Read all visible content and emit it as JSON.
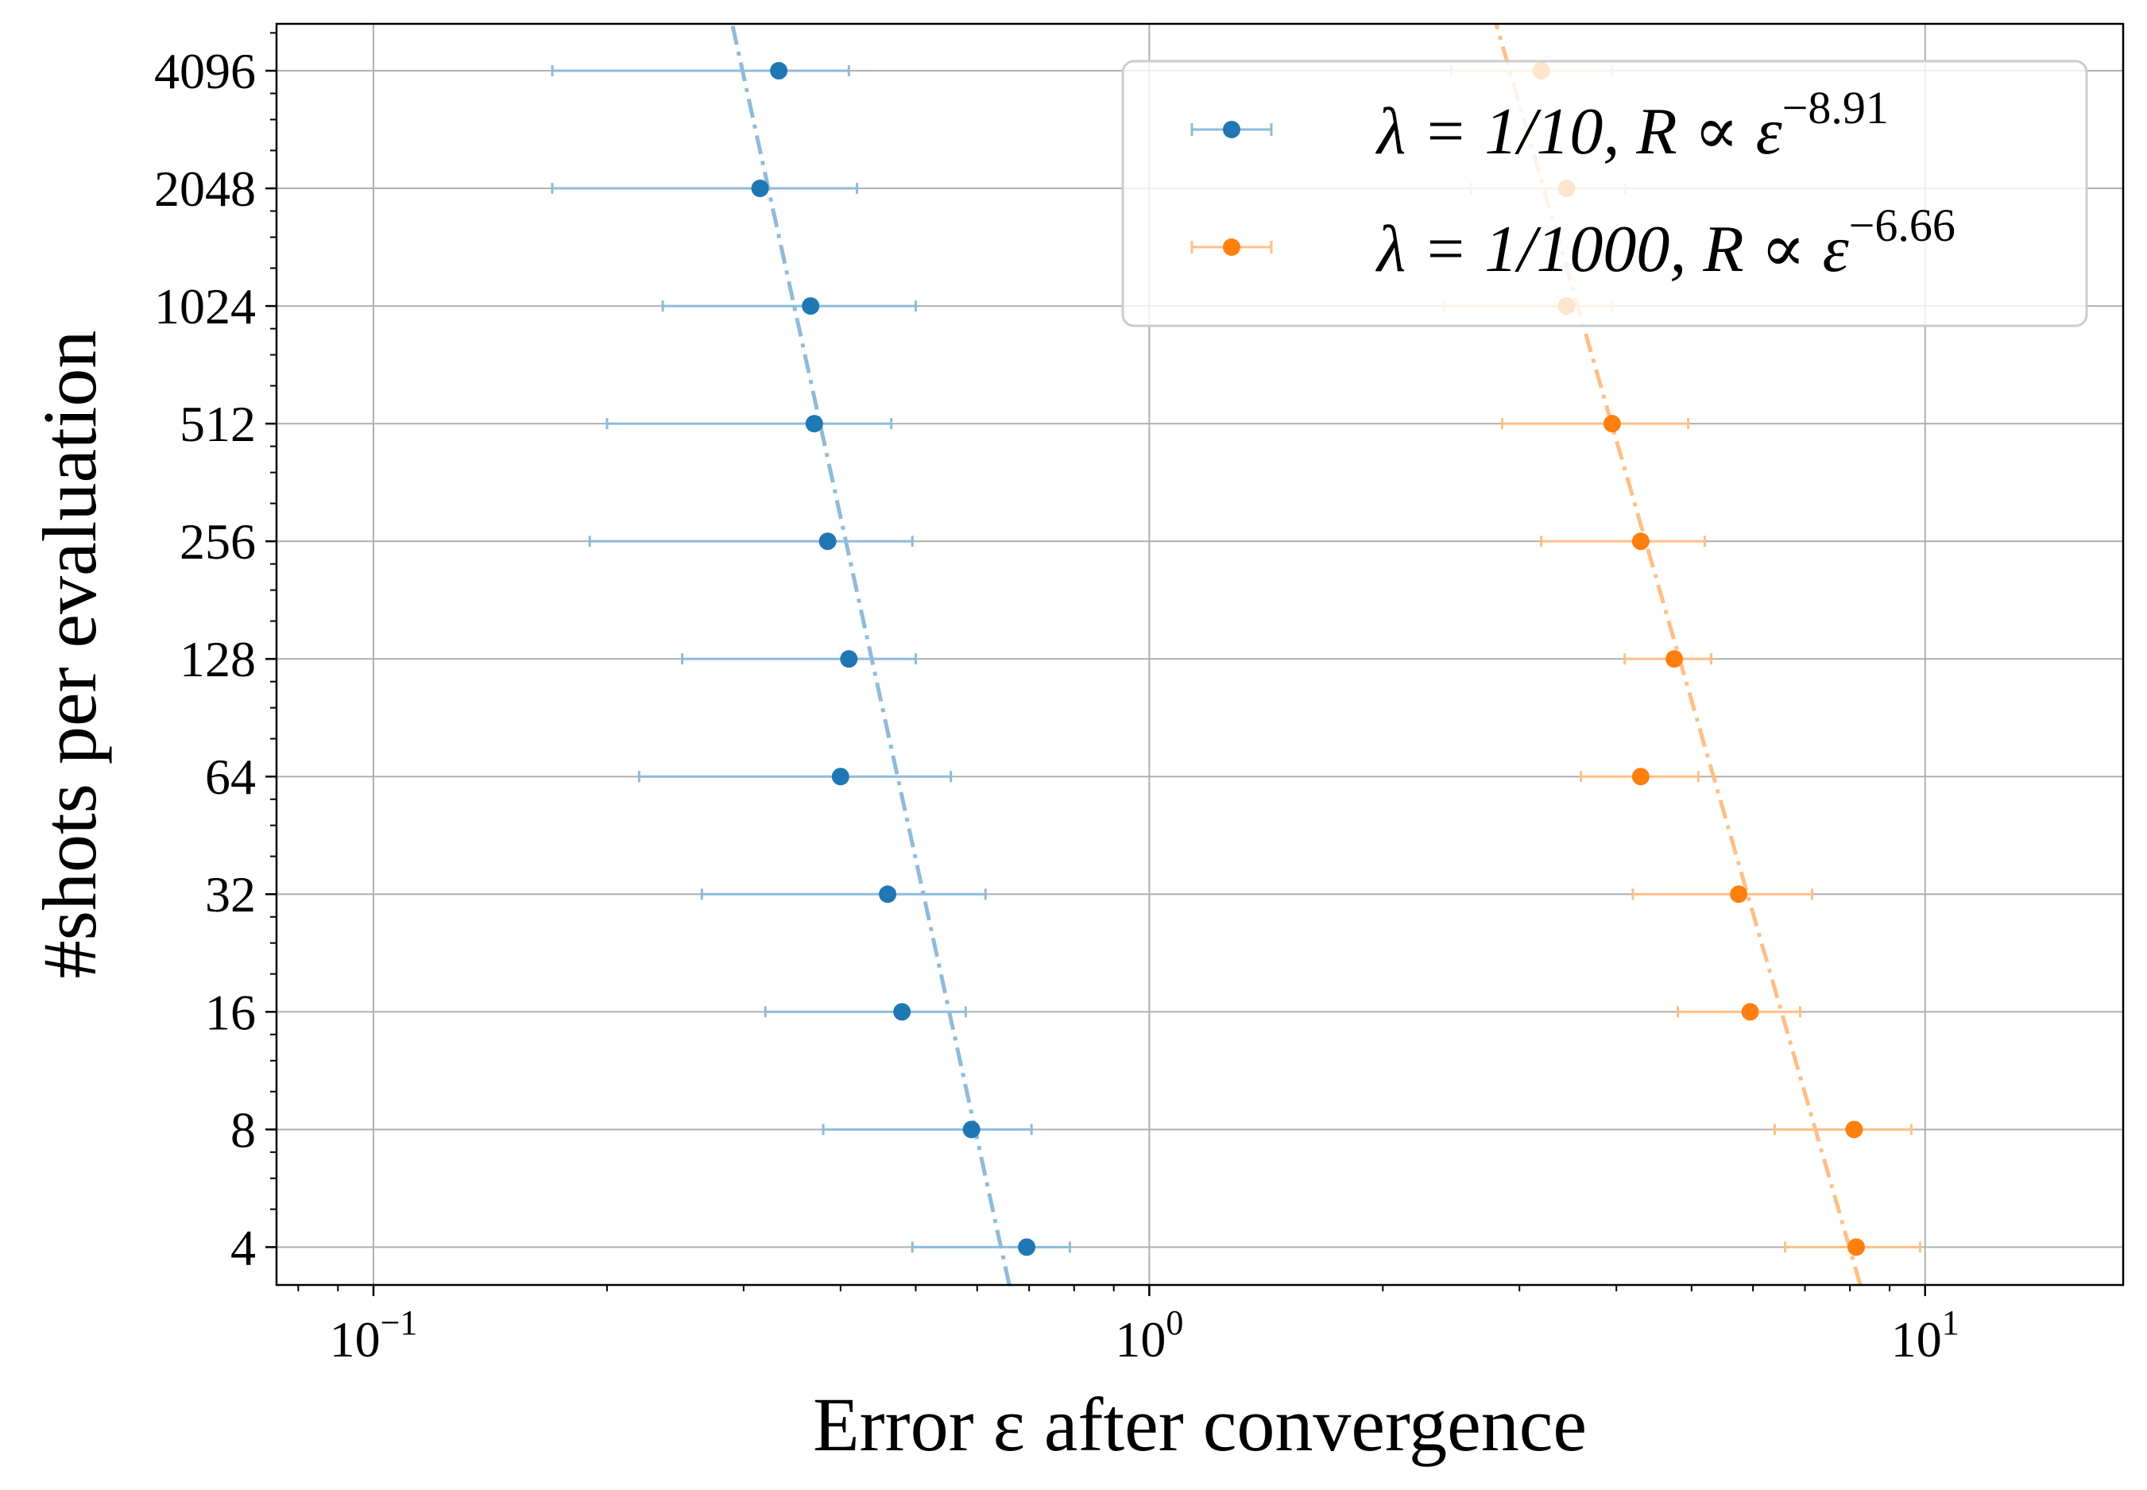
{
  "chart_data": {
    "type": "scatter",
    "xlabel": "Error ε after convergence",
    "ylabel": "#shots per evaluation",
    "x_scale": "log",
    "y_scale": "log2",
    "xlim": [
      0.075,
      18
    ],
    "ylim": [
      3.2,
      5400
    ],
    "x_ticks": [
      {
        "value": 0.1,
        "base": "10",
        "exp": "−1"
      },
      {
        "value": 1,
        "base": "10",
        "exp": "0"
      },
      {
        "value": 10,
        "base": "10",
        "exp": "1"
      }
    ],
    "y_ticks": [
      {
        "value": 4,
        "label": "4"
      },
      {
        "value": 8,
        "label": "8"
      },
      {
        "value": 16,
        "label": "16"
      },
      {
        "value": 32,
        "label": "32"
      },
      {
        "value": 64,
        "label": "64"
      },
      {
        "value": 128,
        "label": "128"
      },
      {
        "value": 256,
        "label": "256"
      },
      {
        "value": 512,
        "label": "512"
      },
      {
        "value": 1024,
        "label": "1024"
      },
      {
        "value": 2048,
        "label": "2048"
      },
      {
        "value": 4096,
        "label": "4096"
      }
    ],
    "grid": true,
    "legend_position": "top-right",
    "series": [
      {
        "name": "λ = 1/10, R ∝ ε",
        "name_lambda": "λ = 1/10, ",
        "name_rel": "R ∝ ε",
        "exponent": "−8.91",
        "color": "#1f77b4",
        "fit_color": "#8fbbd9",
        "points": [
          {
            "y": 4,
            "x": 0.695,
            "xerr": [
              0.495,
              0.79
            ]
          },
          {
            "y": 8,
            "x": 0.59,
            "xerr": [
              0.38,
              0.705
            ]
          },
          {
            "y": 16,
            "x": 0.48,
            "xerr": [
              0.32,
              0.58
            ]
          },
          {
            "y": 32,
            "x": 0.46,
            "xerr": [
              0.265,
              0.615
            ]
          },
          {
            "y": 64,
            "x": 0.4,
            "xerr": [
              0.22,
              0.555
            ]
          },
          {
            "y": 128,
            "x": 0.41,
            "xerr": [
              0.25,
              0.5
            ]
          },
          {
            "y": 256,
            "x": 0.385,
            "xerr": [
              0.19,
              0.495
            ]
          },
          {
            "y": 512,
            "x": 0.37,
            "xerr": [
              0.2,
              0.465
            ]
          },
          {
            "y": 1024,
            "x": 0.366,
            "xerr": [
              0.236,
              0.5
            ]
          },
          {
            "y": 2048,
            "x": 0.315,
            "xerr": [
              0.17,
              0.42
            ]
          },
          {
            "y": 4096,
            "x": 0.333,
            "xerr": [
              0.17,
              0.41
            ]
          }
        ],
        "fit": {
          "x_start": 0.66,
          "y_start": 3.2,
          "x_end": 0.29,
          "y_end": 5400
        }
      },
      {
        "name": "λ = 1/1000, R ∝ ε",
        "name_lambda": "λ = 1/1000, ",
        "name_rel": "R ∝ ε",
        "exponent": "−6.66",
        "color": "#ff7f0e",
        "fit_color": "#ffbf86",
        "points": [
          {
            "y": 4,
            "x": 8.15,
            "xerr": [
              6.6,
              9.85
            ]
          },
          {
            "y": 8,
            "x": 8.1,
            "xerr": [
              6.4,
              9.6
            ]
          },
          {
            "y": 16,
            "x": 5.95,
            "xerr": [
              4.8,
              6.9
            ]
          },
          {
            "y": 32,
            "x": 5.75,
            "xerr": [
              4.2,
              7.15
            ]
          },
          {
            "y": 64,
            "x": 4.3,
            "xerr": [
              3.6,
              5.1
            ]
          },
          {
            "y": 128,
            "x": 4.75,
            "xerr": [
              4.1,
              5.3
            ]
          },
          {
            "y": 256,
            "x": 4.3,
            "xerr": [
              3.2,
              5.2
            ]
          },
          {
            "y": 512,
            "x": 3.95,
            "xerr": [
              2.85,
              4.95
            ]
          },
          {
            "y": 1024,
            "x": 3.45,
            "xerr": [
              2.4,
              3.95
            ]
          },
          {
            "y": 2048,
            "x": 3.45,
            "xerr": [
              2.6,
              4.1
            ]
          },
          {
            "y": 4096,
            "x": 3.2,
            "xerr": [
              2.45,
              3.95
            ]
          }
        ],
        "fit": {
          "x_start": 8.25,
          "y_start": 3.2,
          "x_end": 2.8,
          "y_end": 5400
        }
      }
    ]
  }
}
